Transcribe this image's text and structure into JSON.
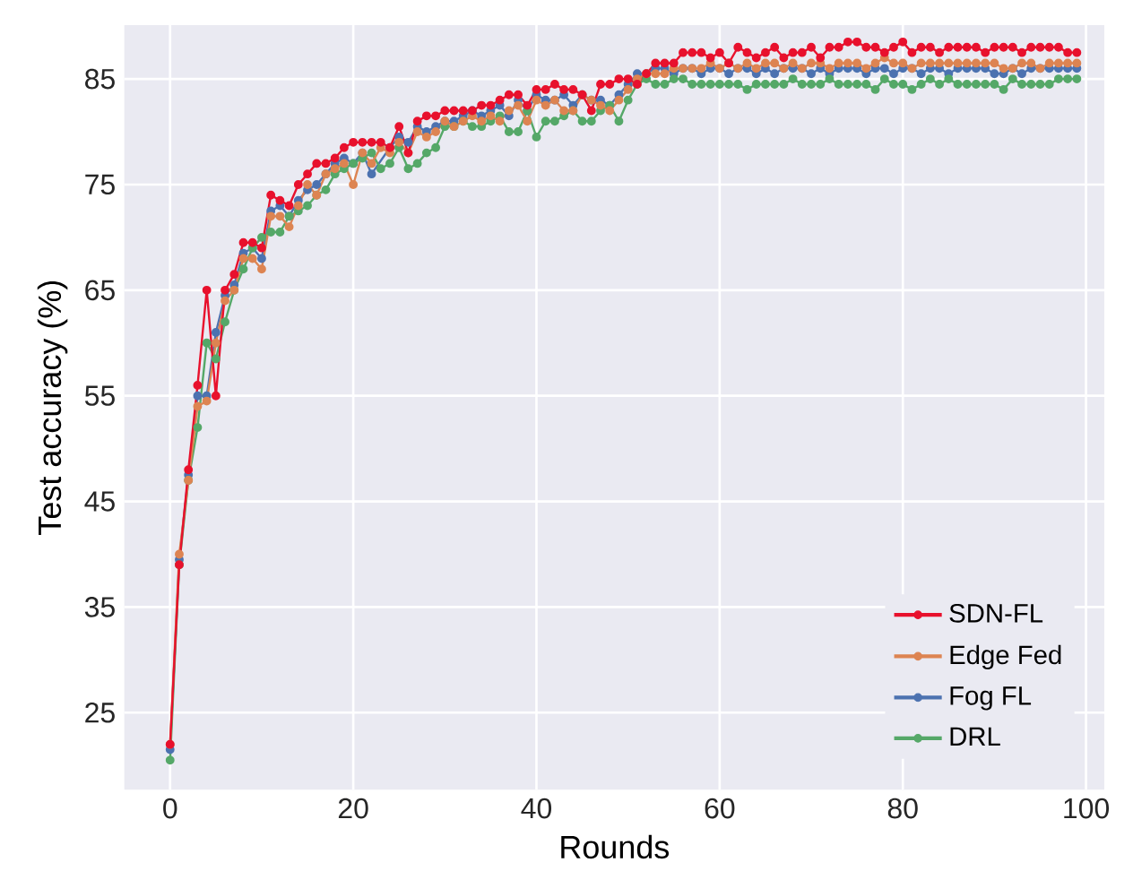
{
  "chart_data": {
    "type": "line",
    "xlabel": "Rounds",
    "ylabel": "Test accuracy (%)",
    "x": [
      0,
      1,
      2,
      3,
      4,
      5,
      6,
      7,
      8,
      9,
      10,
      11,
      12,
      13,
      14,
      15,
      16,
      17,
      18,
      19,
      20,
      21,
      22,
      23,
      24,
      25,
      26,
      27,
      28,
      29,
      30,
      31,
      32,
      33,
      34,
      35,
      36,
      37,
      38,
      39,
      40,
      41,
      42,
      43,
      44,
      45,
      46,
      47,
      48,
      49,
      50,
      51,
      52,
      53,
      54,
      55,
      56,
      57,
      58,
      59,
      60,
      61,
      62,
      63,
      64,
      65,
      66,
      67,
      68,
      69,
      70,
      71,
      72,
      73,
      74,
      75,
      76,
      77,
      78,
      79,
      80,
      81,
      82,
      83,
      84,
      85,
      86,
      87,
      88,
      89,
      90,
      91,
      92,
      93,
      94,
      95,
      96,
      97,
      98,
      99
    ],
    "series": [
      {
        "name": "Fog FL",
        "color": "#4c72b0",
        "values": [
          21.5,
          39.5,
          47.5,
          55,
          55,
          61,
          64.5,
          65.5,
          68.5,
          69,
          68,
          72.5,
          73,
          72,
          73.5,
          74.5,
          75,
          76,
          77,
          77.5,
          77,
          78,
          76,
          null,
          78.5,
          79.5,
          79,
          80.5,
          80,
          80.5,
          81,
          81,
          81.5,
          82,
          81.5,
          82,
          82.5,
          81.5,
          83,
          82,
          83.5,
          83,
          83,
          83.5,
          82.5,
          83.5,
          83,
          83,
          82.5,
          83.5,
          84.5,
          85.5,
          85.5,
          86,
          86,
          85.5,
          86,
          86,
          85.5,
          86,
          86,
          85.5,
          86,
          86,
          85.5,
          86,
          85.5,
          86,
          86,
          86,
          85.5,
          86,
          85.5,
          86,
          86,
          86,
          85.5,
          86,
          86,
          85.5,
          86,
          86,
          85.5,
          86,
          86,
          85.5,
          86,
          86,
          86,
          86,
          85.5,
          85.5,
          86,
          85.5,
          86,
          86,
          86,
          86,
          86,
          86
        ]
      },
      {
        "name": "DRL",
        "color": "#55a868",
        "values": [
          20.5,
          39,
          47,
          52,
          60,
          58.5,
          62,
          65,
          67,
          69,
          70,
          70.5,
          70.5,
          72,
          72.5,
          73,
          74,
          74.5,
          76,
          76.5,
          77,
          77.5,
          78,
          76.5,
          77,
          78.5,
          76.5,
          77,
          78,
          78.5,
          80.5,
          80.5,
          81,
          80.5,
          80.5,
          81,
          81.5,
          80,
          80,
          82,
          79.5,
          81,
          81,
          81.5,
          82,
          81,
          81,
          82,
          82.5,
          81,
          83,
          84.5,
          85,
          84.5,
          84.5,
          85,
          85,
          84.5,
          84.5,
          84.5,
          84.5,
          84.5,
          84.5,
          84,
          84.5,
          84.5,
          84.5,
          84.5,
          85,
          84.5,
          84.5,
          84.5,
          85,
          84.5,
          84.5,
          84.5,
          84.5,
          84,
          85,
          84.5,
          84.5,
          84,
          84.5,
          85,
          84.5,
          85,
          84.5,
          84.5,
          84.5,
          84.5,
          84.5,
          84,
          85,
          84.5,
          84.5,
          84.5,
          84.5,
          85,
          85,
          85
        ]
      },
      {
        "name": "Edge Fed",
        "color": "#dd8452",
        "values": [
          22,
          40,
          47,
          54,
          54.5,
          60,
          64,
          65,
          68,
          68,
          67,
          72,
          72,
          71,
          73,
          75,
          74,
          76,
          76.5,
          77,
          75,
          78,
          77,
          78.5,
          78,
          79,
          78,
          80,
          79.5,
          80,
          81,
          80.5,
          81,
          81.5,
          81,
          81.5,
          81,
          82,
          82.5,
          81,
          83,
          82.5,
          83,
          82,
          82,
          83.5,
          83,
          82.5,
          82,
          83,
          84,
          85,
          85.5,
          85.5,
          85.5,
          86,
          86,
          86,
          86,
          86.5,
          86,
          86.5,
          86,
          86.5,
          86,
          86.5,
          86.5,
          86,
          86.5,
          86,
          86.5,
          86.5,
          86,
          86.5,
          86.5,
          86.5,
          86,
          86.5,
          87,
          86.5,
          86.5,
          86,
          86.5,
          86.5,
          86.5,
          86.5,
          86.5,
          86.5,
          86.5,
          86.5,
          86.5,
          86,
          86,
          86.5,
          86.5,
          86,
          86.5,
          86.5,
          86.5,
          86.5
        ]
      },
      {
        "name": "SDN-FL",
        "color": "#e8112d",
        "values": [
          22,
          39,
          48,
          56,
          65,
          55,
          65,
          66.5,
          69.5,
          69.5,
          69,
          74,
          73.5,
          73,
          75,
          76,
          77,
          77,
          77.5,
          78.5,
          79,
          79,
          79,
          79,
          78.5,
          80.5,
          78,
          81,
          81.5,
          81.5,
          82,
          82,
          82,
          82,
          82.5,
          82.5,
          83,
          83.5,
          83.5,
          82.5,
          84,
          84,
          84.5,
          84,
          84,
          83.5,
          82,
          84.5,
          84.5,
          85,
          85,
          84.5,
          85.5,
          86.5,
          86.5,
          86.5,
          87.5,
          87.5,
          87.5,
          87,
          87.5,
          86.5,
          88,
          87.5,
          87,
          87.5,
          88,
          87,
          87.5,
          87.5,
          88,
          87,
          88,
          88,
          88.5,
          88.5,
          88,
          88,
          87.5,
          88,
          88.5,
          87.5,
          88,
          88,
          87.5,
          88,
          88,
          88,
          88,
          87.5,
          88,
          88,
          88,
          87.5,
          88,
          88,
          88,
          88,
          87.5,
          87.5
        ]
      }
    ],
    "xlim": [
      -5,
      102
    ],
    "ylim": [
      17.7,
      90.1
    ],
    "xticks": [
      0,
      20,
      40,
      60,
      80,
      100
    ],
    "yticks": [
      25,
      35,
      45,
      55,
      65,
      75,
      85
    ],
    "grid": true,
    "legend": "bottom right",
    "marker": "circle",
    "line_style": "solid"
  }
}
